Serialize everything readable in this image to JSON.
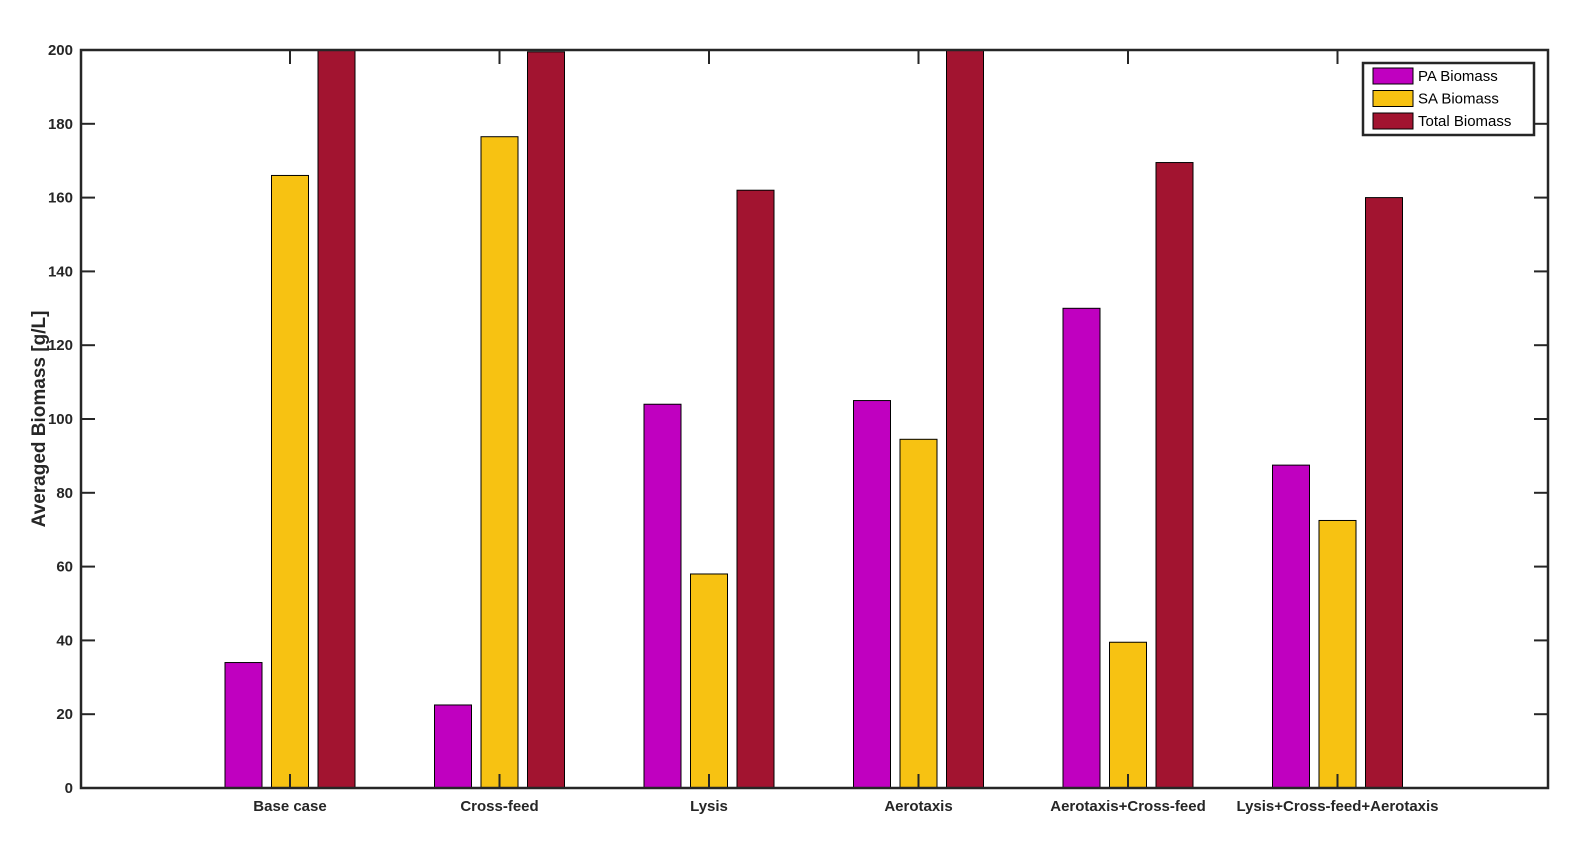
{
  "chart_data": {
    "type": "bar",
    "title": "",
    "xlabel": "",
    "ylabel": "Averaged Biomass [g/L]",
    "ylim": [
      0,
      200
    ],
    "yticks": [
      0,
      20,
      40,
      60,
      80,
      100,
      120,
      140,
      160,
      180,
      200
    ],
    "categories": [
      "Base case",
      "Cross-feed",
      "Lysis",
      "Aerotaxis",
      "Aerotaxis+Cross-feed",
      "Lysis+Cross-feed+Aerotaxis"
    ],
    "series": [
      {
        "name": "PA Biomass",
        "color": "#c000c0",
        "values": [
          34,
          22.5,
          104,
          105,
          130,
          87.5
        ]
      },
      {
        "name": "SA Biomass",
        "color": "#f7c212",
        "values": [
          166,
          176.5,
          58,
          94.5,
          39.5,
          72.5
        ]
      },
      {
        "name": "Total Biomass",
        "color": "#a21430",
        "values": [
          200,
          199.5,
          162,
          200,
          169.5,
          160
        ]
      }
    ],
    "grid": false,
    "legend_position": "top-right"
  }
}
